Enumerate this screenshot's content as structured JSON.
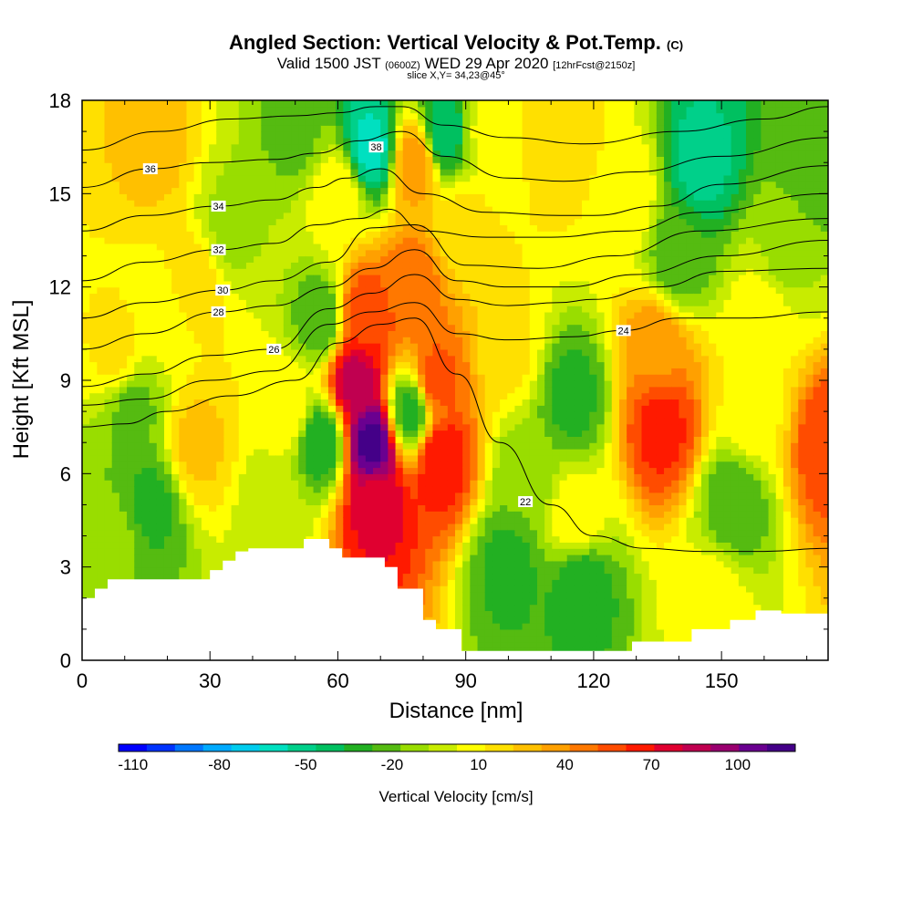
{
  "header": {
    "title_main": "Angled Section: Vertical Velocity & Pot.Temp.",
    "title_unit": "(C)",
    "valid_prefix": "Valid 1500 JST",
    "valid_z": "(0600Z)",
    "valid_date": "WED 29 Apr 2020",
    "valid_fcst": "[12hrFcst@2150z]",
    "slice": "slice X,Y= 34,23@45°"
  },
  "chart_data": {
    "type": "heatmap",
    "xlabel": "Distance [nm]",
    "ylabel": "Height [Kft MSL]",
    "xlim": [
      0,
      175
    ],
    "ylim": [
      0,
      18
    ],
    "x_ticks": [
      0,
      30,
      60,
      90,
      120,
      150
    ],
    "y_ticks": [
      0,
      3,
      6,
      9,
      12,
      15,
      18
    ],
    "terrain": [
      [
        0,
        2
      ],
      [
        3,
        2
      ],
      [
        3,
        2.3
      ],
      [
        6,
        2.3
      ],
      [
        6,
        2.6
      ],
      [
        30,
        2.6
      ],
      [
        30,
        2.9
      ],
      [
        33,
        2.9
      ],
      [
        33,
        3.2
      ],
      [
        36,
        3.2
      ],
      [
        36,
        3.5
      ],
      [
        39,
        3.5
      ],
      [
        39,
        3.6
      ],
      [
        52,
        3.6
      ],
      [
        52,
        3.9
      ],
      [
        58,
        3.9
      ],
      [
        58,
        3.6
      ],
      [
        61,
        3.6
      ],
      [
        61,
        3.3
      ],
      [
        71,
        3.3
      ],
      [
        71,
        3.0
      ],
      [
        74,
        3.0
      ],
      [
        74,
        2.3
      ],
      [
        80,
        2.3
      ],
      [
        80,
        1.3
      ],
      [
        83,
        1.3
      ],
      [
        83,
        1.0
      ],
      [
        89,
        1.0
      ],
      [
        89,
        0.3
      ],
      [
        129,
        0.3
      ],
      [
        129,
        0.6
      ],
      [
        143,
        0.6
      ],
      [
        143,
        1.0
      ],
      [
        152,
        1.0
      ],
      [
        152,
        1.3
      ],
      [
        158,
        1.3
      ],
      [
        158,
        1.6
      ],
      [
        164,
        1.6
      ],
      [
        164,
        1.5
      ],
      [
        175,
        1.5
      ]
    ],
    "velocity_field": [
      {
        "x": 68,
        "y": 7,
        "value": 115
      },
      {
        "x": 64,
        "y": 9,
        "value": 85
      },
      {
        "x": 69,
        "y": 5,
        "value": 75
      },
      {
        "x": 66,
        "y": 11,
        "value": 60
      },
      {
        "x": 84,
        "y": 6.5,
        "value": 70
      },
      {
        "x": 83,
        "y": 9,
        "value": 55
      },
      {
        "x": 136,
        "y": 7.5,
        "value": 65
      },
      {
        "x": 135,
        "y": 10,
        "value": 40
      },
      {
        "x": 175,
        "y": 7,
        "value": 60
      },
      {
        "x": 77,
        "y": 12,
        "value": 50
      },
      {
        "x": 78,
        "y": 16,
        "value": 40
      },
      {
        "x": 100,
        "y": 10,
        "value": 15
      },
      {
        "x": 90,
        "y": 14,
        "value": 15
      },
      {
        "x": 112,
        "y": 17,
        "value": 20
      },
      {
        "x": 26,
        "y": 12,
        "value": 20
      },
      {
        "x": 8,
        "y": 10,
        "value": 15
      },
      {
        "x": 17,
        "y": 16.5,
        "value": 25
      },
      {
        "x": 27,
        "y": 7,
        "value": 25
      },
      {
        "x": 48,
        "y": 8,
        "value": 10
      },
      {
        "x": 158,
        "y": 8,
        "value": 10
      },
      {
        "x": 116,
        "y": 4.5,
        "value": 10
      },
      {
        "x": 16,
        "y": 5,
        "value": -30
      },
      {
        "x": 12,
        "y": 8,
        "value": -20
      },
      {
        "x": 56,
        "y": 7,
        "value": -35
      },
      {
        "x": 56,
        "y": 11,
        "value": -25
      },
      {
        "x": 77,
        "y": 8,
        "value": -30
      },
      {
        "x": 68,
        "y": 16.5,
        "value": -60
      },
      {
        "x": 85,
        "y": 17,
        "value": -45
      },
      {
        "x": 145,
        "y": 16,
        "value": -50
      },
      {
        "x": 140,
        "y": 13,
        "value": -25
      },
      {
        "x": 115,
        "y": 8.5,
        "value": -30
      },
      {
        "x": 100,
        "y": 3,
        "value": -30
      },
      {
        "x": 117,
        "y": 2.5,
        "value": -35
      },
      {
        "x": 153,
        "y": 5,
        "value": -25
      },
      {
        "x": 45,
        "y": 5,
        "value": -5
      },
      {
        "x": 8,
        "y": 4,
        "value": -15
      },
      {
        "x": 104,
        "y": 6,
        "value": -15
      },
      {
        "x": 35,
        "y": 14,
        "value": -10
      },
      {
        "x": 50,
        "y": 17,
        "value": -20
      },
      {
        "x": 165,
        "y": 13,
        "value": -10
      },
      {
        "x": 172,
        "y": 16,
        "value": -25
      },
      {
        "x": 60,
        "y": 15,
        "value": 10
      },
      {
        "x": 128,
        "y": 15,
        "value": 10
      },
      {
        "x": 20,
        "y": 11,
        "value": 5
      },
      {
        "x": 95,
        "y": 17,
        "value": 5
      },
      {
        "x": 160,
        "y": 11,
        "value": 10
      },
      {
        "x": 148,
        "y": 2,
        "value": 8
      }
    ],
    "isentropes": [
      {
        "label": "22",
        "label_at": [
          104,
          5.1
        ],
        "points": [
          [
            0,
            7.5
          ],
          [
            10,
            7.6
          ],
          [
            20,
            8
          ],
          [
            35,
            8.5
          ],
          [
            50,
            9
          ],
          [
            60,
            10.2
          ],
          [
            70,
            10.8
          ],
          [
            78,
            11
          ],
          [
            88,
            9.2
          ],
          [
            98,
            7
          ],
          [
            110,
            5
          ],
          [
            120,
            4
          ],
          [
            132,
            3.6
          ],
          [
            145,
            3.5
          ],
          [
            160,
            3.5
          ],
          [
            175,
            3.6
          ]
        ]
      },
      {
        "label": "24",
        "label_at": [
          127,
          10.6
        ],
        "points": [
          [
            0,
            8.2
          ],
          [
            15,
            8.4
          ],
          [
            30,
            9
          ],
          [
            45,
            9.3
          ],
          [
            58,
            10.8
          ],
          [
            68,
            11.2
          ],
          [
            78,
            11.5
          ],
          [
            88,
            10.5
          ],
          [
            100,
            10.3
          ],
          [
            115,
            10.4
          ],
          [
            127,
            10.6
          ],
          [
            140,
            11
          ],
          [
            155,
            11
          ],
          [
            175,
            11.2
          ]
        ]
      },
      {
        "label": "26",
        "label_at": [
          45,
          10
        ],
        "points": [
          [
            0,
            8.8
          ],
          [
            15,
            9.2
          ],
          [
            30,
            9.8
          ],
          [
            45,
            10
          ],
          [
            58,
            11.3
          ],
          [
            68,
            11.8
          ],
          [
            78,
            12.4
          ],
          [
            88,
            11.6
          ],
          [
            100,
            11.4
          ],
          [
            112,
            11.5
          ],
          [
            120,
            11.6
          ],
          [
            135,
            12
          ],
          [
            150,
            12.5
          ],
          [
            175,
            12.6
          ]
        ]
      },
      {
        "label": "28",
        "label_at": [
          32,
          11.2
        ],
        "points": [
          [
            0,
            10
          ],
          [
            15,
            10.5
          ],
          [
            32,
            11.2
          ],
          [
            45,
            11.4
          ],
          [
            58,
            12
          ],
          [
            68,
            12.6
          ],
          [
            78,
            13.2
          ],
          [
            88,
            12.2
          ],
          [
            100,
            12
          ],
          [
            114,
            12
          ],
          [
            130,
            12.4
          ],
          [
            150,
            13
          ],
          [
            175,
            13.5
          ]
        ]
      },
      {
        "label": "30",
        "label_at": [
          33,
          11.9
        ],
        "points": [
          [
            0,
            11
          ],
          [
            15,
            11.5
          ],
          [
            33,
            11.9
          ],
          [
            45,
            12.2
          ],
          [
            58,
            12.8
          ],
          [
            68,
            13.9
          ],
          [
            78,
            14
          ],
          [
            90,
            12.7
          ],
          [
            107,
            12.6
          ],
          [
            125,
            13
          ],
          [
            145,
            13.8
          ],
          [
            175,
            14.2
          ]
        ]
      },
      {
        "label": "32",
        "label_at": [
          32,
          13.2
        ],
        "points": [
          [
            0,
            12.2
          ],
          [
            15,
            12.8
          ],
          [
            32,
            13.2
          ],
          [
            45,
            13.4
          ],
          [
            55,
            14
          ],
          [
            65,
            14.2
          ],
          [
            72,
            14.5
          ],
          [
            80,
            13.8
          ],
          [
            95,
            13.6
          ],
          [
            110,
            13.6
          ],
          [
            128,
            13.8
          ],
          [
            145,
            14.4
          ],
          [
            175,
            15
          ]
        ]
      },
      {
        "label": "34",
        "label_at": [
          32,
          14.6
        ],
        "points": [
          [
            0,
            13.8
          ],
          [
            15,
            14.3
          ],
          [
            32,
            14.6
          ],
          [
            45,
            14.8
          ],
          [
            55,
            15.2
          ],
          [
            62,
            15.5
          ],
          [
            70,
            15.8
          ],
          [
            80,
            15
          ],
          [
            95,
            14.4
          ],
          [
            112,
            14.3
          ],
          [
            120,
            14.3
          ],
          [
            135,
            14.6
          ],
          [
            150,
            15.3
          ],
          [
            175,
            15.9
          ]
        ]
      },
      {
        "label": "36",
        "label_at": [
          16,
          15.8
        ],
        "points": [
          [
            0,
            15.2
          ],
          [
            16,
            15.8
          ],
          [
            30,
            16
          ],
          [
            45,
            16.1
          ],
          [
            55,
            16.3
          ],
          [
            65,
            16.7
          ],
          [
            75,
            17
          ],
          [
            85,
            16.2
          ],
          [
            100,
            15.5
          ],
          [
            113,
            15.4
          ],
          [
            130,
            15.7
          ],
          [
            150,
            16.2
          ],
          [
            175,
            16.8
          ]
        ]
      },
      {
        "label": "38",
        "label_at": [
          69,
          16.5
        ],
        "points": [
          [
            0,
            16.4
          ],
          [
            18,
            17
          ],
          [
            35,
            17.4
          ],
          [
            50,
            17.5
          ],
          [
            60,
            17.6
          ],
          [
            69,
            17.8
          ],
          [
            75,
            17.8
          ],
          [
            85,
            17.2
          ],
          [
            100,
            16.8
          ],
          [
            118,
            16.6
          ],
          [
            140,
            17
          ],
          [
            160,
            17.4
          ],
          [
            175,
            17.8
          ]
        ]
      }
    ],
    "colorbar": {
      "label": "Vertical Velocity [cm/s]",
      "min": -115,
      "max": 120,
      "tick_labels": [
        "-110",
        "-80",
        "-50",
        "-20",
        "10",
        "40",
        "70",
        "100"
      ],
      "tick_values": [
        -110,
        -80,
        -50,
        -20,
        10,
        40,
        70,
        100
      ],
      "colors": [
        "#0000ff",
        "#0033ff",
        "#0077ff",
        "#00aaff",
        "#00ccee",
        "#00e0c0",
        "#00d08a",
        "#00c060",
        "#22b022",
        "#55bb11",
        "#99dd00",
        "#c8ec00",
        "#ffff00",
        "#ffe000",
        "#ffc000",
        "#ffa000",
        "#ff7800",
        "#ff4c00",
        "#ff1a00",
        "#e00030",
        "#c00050",
        "#9a0070",
        "#6a0090",
        "#440088"
      ]
    }
  }
}
